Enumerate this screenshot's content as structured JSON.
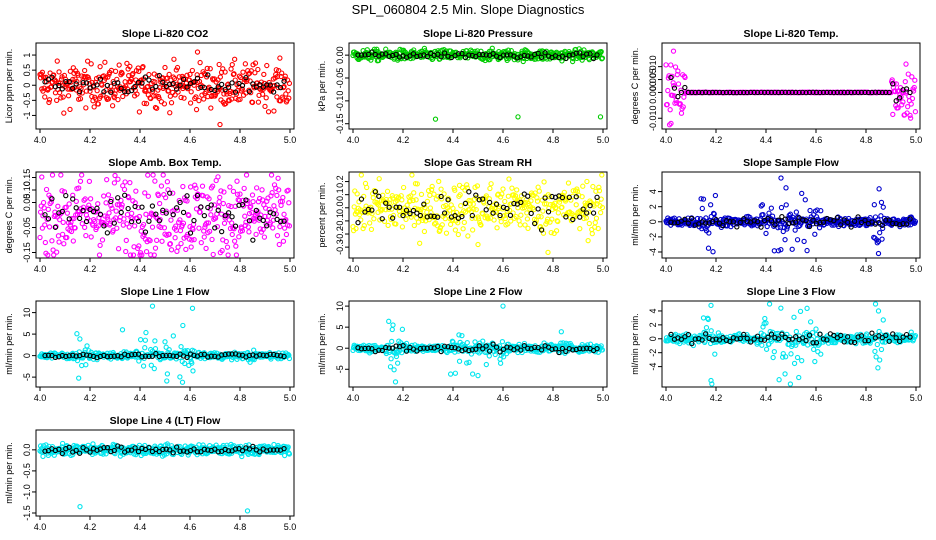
{
  "main_title": "SPL_060804  2.5 Min. Slope Diagnostics",
  "chart_data": [
    {
      "type": "scatter",
      "title": "Slope Li-820 CO2",
      "ylabel": "Licor ppm per min.",
      "xlim": [
        4.0,
        5.0
      ],
      "ylim": [
        -1.35,
        1.3
      ],
      "xticks": [
        "4.0",
        "4.2",
        "4.4",
        "4.6",
        "4.8",
        "5.0"
      ],
      "yticks": [
        "-1",
        "-0.5",
        "0",
        "0.5",
        "1"
      ],
      "ytick_values": [
        -1,
        -0.5,
        0,
        0.5,
        1
      ],
      "color": "#ff0000",
      "spread": 0.35,
      "black_spread": 0.15,
      "outliers": [
        [
          4.72,
          -1.3
        ],
        [
          4.63,
          1.1
        ],
        [
          4.12,
          -0.8
        ]
      ],
      "pattern": "uniform"
    },
    {
      "type": "scatter",
      "title": "Slope Li-820 Pressure",
      "ylabel": "kPa per min.",
      "xlim": [
        4.0,
        5.0
      ],
      "ylim": [
        -0.155,
        0.02
      ],
      "xticks": [
        "4.0",
        "4.2",
        "4.4",
        "4.6",
        "4.8",
        "5.0"
      ],
      "yticks": [
        "-0.15",
        "-0.10",
        "-0.05",
        "0.00"
      ],
      "ytick_values": [
        -0.15,
        -0.1,
        -0.05,
        0.0
      ],
      "color": "#00cc00",
      "spread": 0.006,
      "black_spread": 0.003,
      "outliers": [
        [
          4.33,
          -0.14
        ],
        [
          4.66,
          -0.135
        ],
        [
          4.99,
          -0.135
        ]
      ],
      "pattern": "uniform"
    },
    {
      "type": "scatter",
      "title": "Slope Li-820 Temp.",
      "ylabel": "degrees C per min.",
      "xlim": [
        4.0,
        5.0
      ],
      "ylim": [
        -0.013,
        0.018
      ],
      "xticks": [
        "4.0",
        "4.2",
        "4.4",
        "4.6",
        "4.8",
        "5.0"
      ],
      "yticks": [
        "-0.010",
        "0.000",
        "0.005",
        "0.010"
      ],
      "ytick_values": [
        -0.01,
        0.0,
        0.005,
        0.01
      ],
      "color": "#ff00ff",
      "spread": 0.005,
      "black_spread": 0.001,
      "outliers": [
        [
          4.03,
          0.016
        ],
        [
          4.02,
          -0.012
        ],
        [
          4.96,
          0.011
        ]
      ],
      "pattern": "edges"
    },
    {
      "type": "scatter",
      "title": "Slope Amb. Box Temp.",
      "ylabel": "degrees C per min.",
      "xlim": [
        4.0,
        5.0
      ],
      "ylim": [
        -0.16,
        0.16
      ],
      "xticks": [
        "4.0",
        "4.2",
        "4.4",
        "4.6",
        "4.8",
        "5.0"
      ],
      "yticks": [
        "-0.15",
        "-0.05",
        "0.05",
        "0.10",
        "0.15"
      ],
      "ytick_values": [
        -0.15,
        -0.05,
        0.05,
        0.1,
        0.15
      ],
      "color": "#ff00ff",
      "spread": 0.08,
      "black_spread": 0.04,
      "outliers": [],
      "pattern": "uniform"
    },
    {
      "type": "scatter",
      "title": "Slope Gas Stream RH",
      "ylabel": "percent per min.",
      "xlim": [
        4.0,
        5.0
      ],
      "ylim": [
        -0.36,
        0.25
      ],
      "xticks": [
        "4.0",
        "4.2",
        "4.4",
        "4.6",
        "4.8",
        "5.0"
      ],
      "yticks": [
        "-0.3",
        "-0.2",
        "-0.1",
        "0.0",
        "0.1",
        "0.2"
      ],
      "ytick_values": [
        -0.3,
        -0.2,
        -0.1,
        0.0,
        0.1,
        0.2
      ],
      "color": "#ffff00",
      "spread": 0.1,
      "black_spread": 0.08,
      "outliers": [
        [
          4.78,
          -0.34
        ],
        [
          4.5,
          -0.28
        ]
      ],
      "pattern": "uniform"
    },
    {
      "type": "scatter",
      "title": "Slope Sample Flow",
      "ylabel": "ml/min per min.",
      "xlim": [
        4.0,
        5.0
      ],
      "ylim": [
        -4.4,
        6.2
      ],
      "xticks": [
        "4.0",
        "4.2",
        "4.4",
        "4.6",
        "4.8",
        "5.0"
      ],
      "yticks": [
        "-4",
        "-2",
        "0",
        "2",
        "4"
      ],
      "ytick_values": [
        -4,
        -2,
        0,
        2,
        4
      ],
      "color": "#0000cc",
      "spread": 0.3,
      "black_spread": 0.3,
      "outliers": [
        [
          4.46,
          5.8
        ],
        [
          4.85,
          -4.2
        ],
        [
          4.17,
          -3.5
        ],
        [
          4.15,
          3.0
        ],
        [
          4.48,
          4.5
        ]
      ],
      "pattern": "bursts"
    },
    {
      "type": "scatter",
      "title": "Slope Line 1 Flow",
      "ylabel": "ml/min per min.",
      "xlim": [
        4.0,
        5.0
      ],
      "ylim": [
        -6.6,
        12.0
      ],
      "xticks": [
        "4.0",
        "4.2",
        "4.4",
        "4.6",
        "4.8",
        "5.0"
      ],
      "yticks": [
        "-5",
        "0",
        "5",
        "10"
      ],
      "ytick_values": [
        -5,
        0,
        5,
        10
      ],
      "color": "#00e5ee",
      "spread": 0.4,
      "black_spread": 0.2,
      "outliers": [
        [
          4.45,
          11.5
        ],
        [
          4.57,
          -6.2
        ],
        [
          4.61,
          11.0
        ],
        [
          4.33,
          6.0
        ]
      ],
      "pattern": "bursts"
    },
    {
      "type": "scatter",
      "title": "Slope Line 2 Flow",
      "ylabel": "ml/min per min.",
      "xlim": [
        4.0,
        5.0
      ],
      "ylim": [
        -8.5,
        10.5
      ],
      "xticks": [
        "4.0",
        "4.2",
        "4.4",
        "4.6",
        "4.8",
        "5.0"
      ],
      "yticks": [
        "-5",
        "0",
        "5",
        "10"
      ],
      "ytick_values": [
        -5,
        0,
        5,
        10
      ],
      "color": "#00e5ee",
      "spread": 0.5,
      "black_spread": 0.5,
      "outliers": [
        [
          4.17,
          -8.0
        ],
        [
          4.6,
          10.0
        ],
        [
          4.16,
          5.5
        ],
        [
          4.5,
          -6.5
        ]
      ],
      "pattern": "bursts"
    },
    {
      "type": "scatter",
      "title": "Slope Line 3 Flow",
      "ylabel": "ml/min per min.",
      "xlim": [
        4.0,
        5.0
      ],
      "ylim": [
        -6.5,
        5.0
      ],
      "xticks": [
        "4.0",
        "4.2",
        "4.4",
        "4.6",
        "4.8",
        "5.0"
      ],
      "yticks": [
        "-4",
        "-2",
        "0",
        "2",
        "4"
      ],
      "ytick_values": [
        -4,
        -2,
        0,
        2,
        4
      ],
      "color": "#00e5ee",
      "spread": 0.35,
      "black_spread": 0.4,
      "outliers": [
        [
          4.18,
          -6.0
        ],
        [
          4.18,
          4.8
        ],
        [
          4.85,
          4.0
        ],
        [
          4.15,
          3.0
        ]
      ],
      "pattern": "bursts"
    },
    {
      "type": "scatter",
      "title": "Slope Line 4 (LT) Flow",
      "ylabel": "ml/min per min.",
      "xlim": [
        4.0,
        5.0
      ],
      "ylim": [
        -1.5,
        0.4
      ],
      "xticks": [
        "4.0",
        "4.2",
        "4.4",
        "4.6",
        "4.8",
        "5.0"
      ],
      "yticks": [
        "-1.5",
        "-1.0",
        "-0.5",
        "0.0"
      ],
      "ytick_values": [
        -1.5,
        -1.0,
        -0.5,
        0.0
      ],
      "color": "#00e5ee",
      "spread": 0.06,
      "black_spread": 0.04,
      "outliers": [
        [
          4.16,
          -1.35
        ],
        [
          4.83,
          -1.45
        ],
        [
          4.49,
          -0.15
        ]
      ],
      "pattern": "uniform"
    }
  ]
}
